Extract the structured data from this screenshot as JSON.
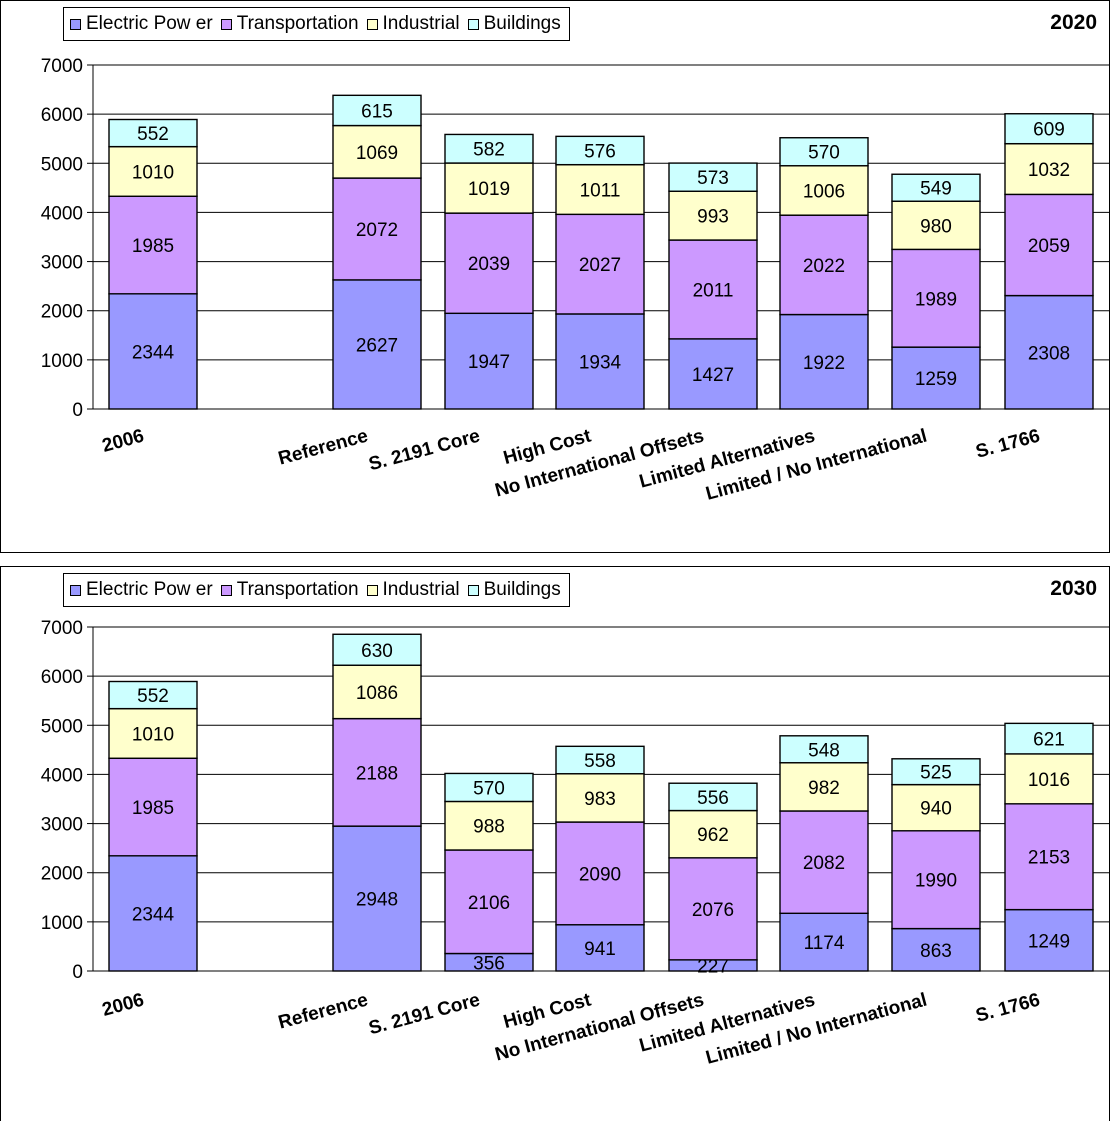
{
  "chart_data": [
    {
      "type": "bar",
      "stacked": true,
      "title": "2020",
      "categories": [
        "2006",
        "Reference",
        "S. 2191 Core",
        "High Cost",
        "No International Offsets",
        "Limited Alternatives",
        "Limited / No International",
        "S. 1766"
      ],
      "series": [
        {
          "name": "Electric Pow er",
          "color": "#9999ff",
          "values": [
            2344,
            2627,
            1947,
            1934,
            1427,
            1922,
            1259,
            2308
          ]
        },
        {
          "name": "Transportation",
          "color": "#cc99ff",
          "values": [
            1985,
            2072,
            2039,
            2027,
            2011,
            2022,
            1989,
            2059
          ]
        },
        {
          "name": "Industrial",
          "color": "#ffffcc",
          "values": [
            1010,
            1069,
            1019,
            1011,
            993,
            1006,
            980,
            1032
          ]
        },
        {
          "name": "Buildings",
          "color": "#ccffff",
          "values": [
            552,
            615,
            582,
            576,
            573,
            570,
            549,
            609
          ]
        }
      ],
      "ylim": [
        0,
        7000
      ],
      "yticks": [
        0,
        1000,
        2000,
        3000,
        4000,
        5000,
        6000,
        7000
      ],
      "grid": true,
      "legend_position": "top-left"
    },
    {
      "type": "bar",
      "stacked": true,
      "title": "2030",
      "categories": [
        "2006",
        "Reference",
        "S. 2191 Core",
        "High Cost",
        "No International Offsets",
        "Limited Alternatives",
        "Limited / No International",
        "S. 1766"
      ],
      "series": [
        {
          "name": "Electric Pow er",
          "color": "#9999ff",
          "values": [
            2344,
            2948,
            356,
            941,
            227,
            1174,
            863,
            1249
          ]
        },
        {
          "name": "Transportation",
          "color": "#cc99ff",
          "values": [
            1985,
            2188,
            2106,
            2090,
            2076,
            2082,
            1990,
            2153
          ]
        },
        {
          "name": "Industrial",
          "color": "#ffffcc",
          "values": [
            1010,
            1086,
            988,
            983,
            962,
            982,
            940,
            1016
          ]
        },
        {
          "name": "Buildings",
          "color": "#ccffff",
          "values": [
            552,
            630,
            570,
            558,
            556,
            548,
            525,
            621
          ]
        }
      ],
      "ylim": [
        0,
        7000
      ],
      "yticks": [
        0,
        1000,
        2000,
        3000,
        4000,
        5000,
        6000,
        7000
      ],
      "grid": true,
      "legend_position": "top-left"
    }
  ]
}
